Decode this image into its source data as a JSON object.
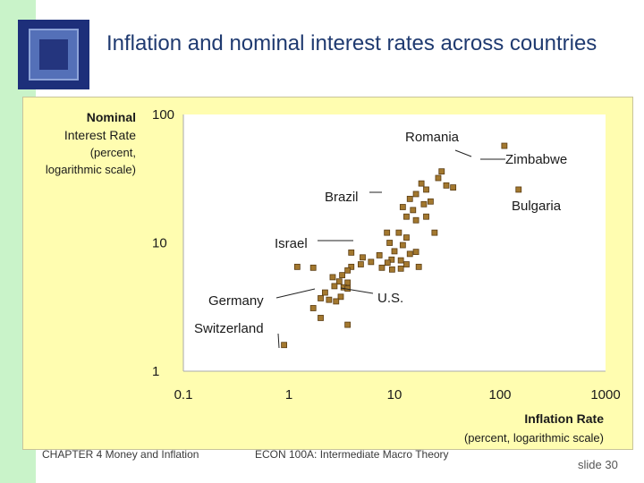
{
  "slide": {
    "title": "Inflation and nominal interest rates across countries",
    "footer_left": "CHAPTER 4   Money and Inflation",
    "footer_center": "ECON 100A: Intermediate Macro Theory",
    "slide_number": "slide 30"
  },
  "colors": {
    "panel": "#fffdb0",
    "plot_area": "#ffffff",
    "point_fill": "#a3782f",
    "point_stroke": "#5a3c12"
  },
  "chart_data": {
    "type": "scatter",
    "x_scale": "log",
    "y_scale": "log",
    "xlim": [
      0.1,
      1000
    ],
    "ylim": [
      1,
      100
    ],
    "xticks": [
      {
        "value": 0.1,
        "label": "0.1"
      },
      {
        "value": 1,
        "label": "1"
      },
      {
        "value": 10,
        "label": "10"
      },
      {
        "value": 100,
        "label": "100"
      },
      {
        "value": 1000,
        "label": "1000"
      }
    ],
    "yticks": [
      {
        "value": 1,
        "label": "1"
      },
      {
        "value": 10,
        "label": "10"
      },
      {
        "value": 100,
        "label": "100"
      }
    ],
    "ylabel": {
      "title": "Nominal Interest Rate",
      "subtitle": "(percent, logarithmic scale)",
      "title_line1": "Nominal",
      "title_line2": "Interest Rate",
      "sub_line1": "(percent,",
      "sub_line2": "logarithmic scale)"
    },
    "xlabel": {
      "title": "Inflation Rate",
      "subtitle": "(percent, logarithmic scale)"
    },
    "annotations": [
      {
        "label": "Romania",
        "x": 110,
        "y": 72
      },
      {
        "label": "Zimbabwe",
        "x": 120,
        "y": 57
      },
      {
        "label": "Brazil",
        "x": 11,
        "y": 24
      },
      {
        "label": "Bulgaria",
        "x": 110,
        "y": 26
      },
      {
        "label": "Israel",
        "x": 8,
        "y": 9.3
      },
      {
        "label": "Germany",
        "x": 2.1,
        "y": 4.1
      },
      {
        "label": "U.S.",
        "x": 2.8,
        "y": 4.4
      },
      {
        "label": "Switzerland",
        "x": 0.8,
        "y": 1.5
      }
    ],
    "points": [
      {
        "x": 110,
        "y": 57
      },
      {
        "x": 150,
        "y": 26
      },
      {
        "x": 28,
        "y": 36
      },
      {
        "x": 26,
        "y": 32
      },
      {
        "x": 31,
        "y": 28
      },
      {
        "x": 36,
        "y": 27
      },
      {
        "x": 18,
        "y": 29
      },
      {
        "x": 20,
        "y": 26
      },
      {
        "x": 16,
        "y": 24
      },
      {
        "x": 14,
        "y": 22
      },
      {
        "x": 12,
        "y": 19
      },
      {
        "x": 15,
        "y": 18
      },
      {
        "x": 19,
        "y": 20
      },
      {
        "x": 22,
        "y": 21
      },
      {
        "x": 13,
        "y": 16
      },
      {
        "x": 16,
        "y": 15
      },
      {
        "x": 20,
        "y": 16
      },
      {
        "x": 24,
        "y": 12
      },
      {
        "x": 8.5,
        "y": 12
      },
      {
        "x": 11,
        "y": 12
      },
      {
        "x": 13,
        "y": 11
      },
      {
        "x": 9,
        "y": 10
      },
      {
        "x": 12,
        "y": 9.6
      },
      {
        "x": 16,
        "y": 8.5
      },
      {
        "x": 10,
        "y": 8.6
      },
      {
        "x": 14,
        "y": 8.2
      },
      {
        "x": 7.2,
        "y": 8.0
      },
      {
        "x": 9.4,
        "y": 7.4
      },
      {
        "x": 11.5,
        "y": 7.3
      },
      {
        "x": 8.6,
        "y": 7.0
      },
      {
        "x": 13,
        "y": 6.8
      },
      {
        "x": 17,
        "y": 6.5
      },
      {
        "x": 11.5,
        "y": 6.3
      },
      {
        "x": 3.9,
        "y": 8.4
      },
      {
        "x": 5.0,
        "y": 7.7
      },
      {
        "x": 6.0,
        "y": 7.1
      },
      {
        "x": 4.8,
        "y": 6.8
      },
      {
        "x": 3.9,
        "y": 6.5
      },
      {
        "x": 7.6,
        "y": 6.4
      },
      {
        "x": 9.5,
        "y": 6.2
      },
      {
        "x": 1.2,
        "y": 6.5
      },
      {
        "x": 1.7,
        "y": 6.4
      },
      {
        "x": 3.6,
        "y": 6.1
      },
      {
        "x": 3.2,
        "y": 5.6
      },
      {
        "x": 2.6,
        "y": 5.4
      },
      {
        "x": 3.0,
        "y": 5.0
      },
      {
        "x": 3.6,
        "y": 4.9
      },
      {
        "x": 3.3,
        "y": 4.5
      },
      {
        "x": 2.7,
        "y": 4.6
      },
      {
        "x": 3.6,
        "y": 4.4
      },
      {
        "x": 2.2,
        "y": 4.1
      },
      {
        "x": 2.0,
        "y": 3.7
      },
      {
        "x": 2.4,
        "y": 3.6
      },
      {
        "x": 3.1,
        "y": 3.8
      },
      {
        "x": 2.8,
        "y": 3.5
      },
      {
        "x": 1.7,
        "y": 3.1
      },
      {
        "x": 2.0,
        "y": 2.6
      },
      {
        "x": 3.6,
        "y": 2.3
      },
      {
        "x": 0.9,
        "y": 1.6
      }
    ]
  }
}
